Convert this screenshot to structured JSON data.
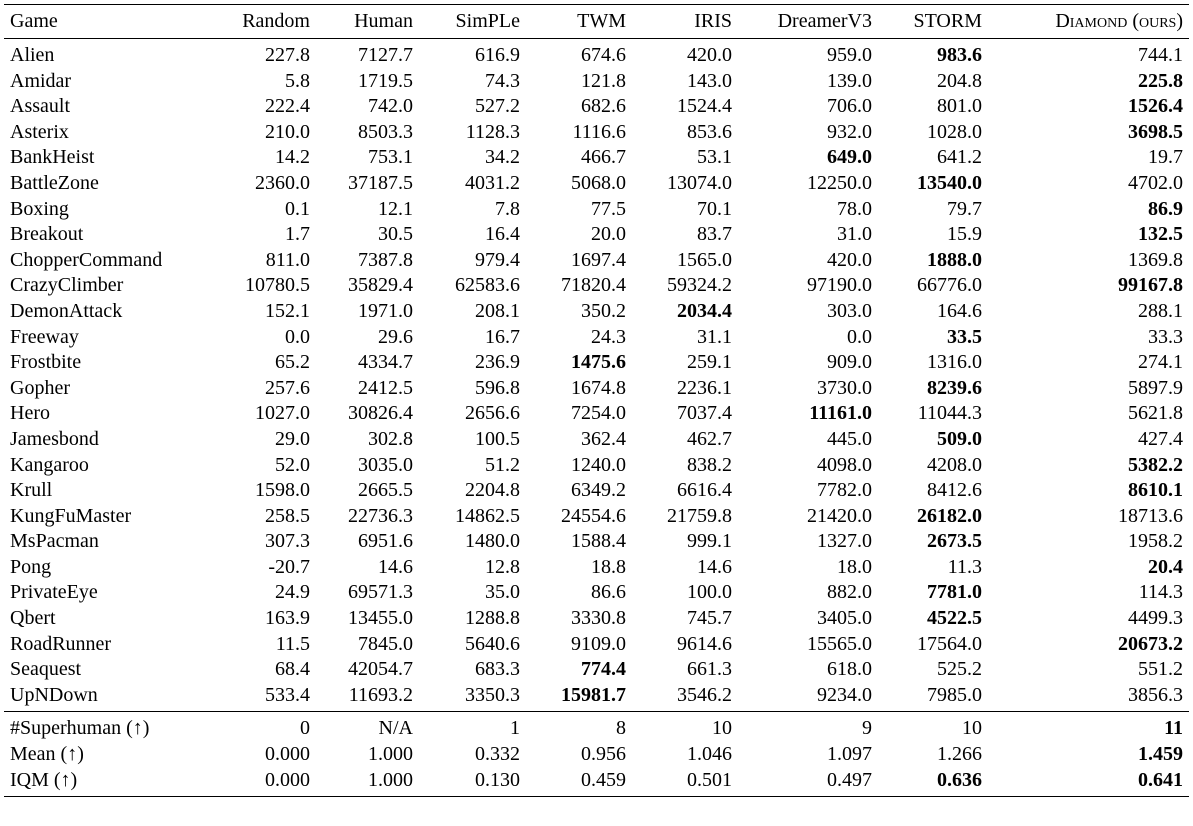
{
  "columns": [
    "Game",
    "Random",
    "Human",
    "SimPLe",
    "TWM",
    "IRIS",
    "DreamerV3",
    "STORM",
    "Diamond (ours)"
  ],
  "rows": [
    {
      "game": "Alien",
      "values": [
        "227.8",
        "7127.7",
        "616.9",
        "674.6",
        "420.0",
        "959.0",
        "983.6",
        "744.1"
      ],
      "best": [
        6
      ]
    },
    {
      "game": "Amidar",
      "values": [
        "5.8",
        "1719.5",
        "74.3",
        "121.8",
        "143.0",
        "139.0",
        "204.8",
        "225.8"
      ],
      "best": [
        7
      ]
    },
    {
      "game": "Assault",
      "values": [
        "222.4",
        "742.0",
        "527.2",
        "682.6",
        "1524.4",
        "706.0",
        "801.0",
        "1526.4"
      ],
      "best": [
        7
      ]
    },
    {
      "game": "Asterix",
      "values": [
        "210.0",
        "8503.3",
        "1128.3",
        "1116.6",
        "853.6",
        "932.0",
        "1028.0",
        "3698.5"
      ],
      "best": [
        7
      ]
    },
    {
      "game": "BankHeist",
      "values": [
        "14.2",
        "753.1",
        "34.2",
        "466.7",
        "53.1",
        "649.0",
        "641.2",
        "19.7"
      ],
      "best": [
        5
      ]
    },
    {
      "game": "BattleZone",
      "values": [
        "2360.0",
        "37187.5",
        "4031.2",
        "5068.0",
        "13074.0",
        "12250.0",
        "13540.0",
        "4702.0"
      ],
      "best": [
        6
      ]
    },
    {
      "game": "Boxing",
      "values": [
        "0.1",
        "12.1",
        "7.8",
        "77.5",
        "70.1",
        "78.0",
        "79.7",
        "86.9"
      ],
      "best": [
        7
      ]
    },
    {
      "game": "Breakout",
      "values": [
        "1.7",
        "30.5",
        "16.4",
        "20.0",
        "83.7",
        "31.0",
        "15.9",
        "132.5"
      ],
      "best": [
        7
      ]
    },
    {
      "game": "ChopperCommand",
      "values": [
        "811.0",
        "7387.8",
        "979.4",
        "1697.4",
        "1565.0",
        "420.0",
        "1888.0",
        "1369.8"
      ],
      "best": [
        6
      ]
    },
    {
      "game": "CrazyClimber",
      "values": [
        "10780.5",
        "35829.4",
        "62583.6",
        "71820.4",
        "59324.2",
        "97190.0",
        "66776.0",
        "99167.8"
      ],
      "best": [
        7
      ]
    },
    {
      "game": "DemonAttack",
      "values": [
        "152.1",
        "1971.0",
        "208.1",
        "350.2",
        "2034.4",
        "303.0",
        "164.6",
        "288.1"
      ],
      "best": [
        4
      ]
    },
    {
      "game": "Freeway",
      "values": [
        "0.0",
        "29.6",
        "16.7",
        "24.3",
        "31.1",
        "0.0",
        "33.5",
        "33.3"
      ],
      "best": [
        6
      ]
    },
    {
      "game": "Frostbite",
      "values": [
        "65.2",
        "4334.7",
        "236.9",
        "1475.6",
        "259.1",
        "909.0",
        "1316.0",
        "274.1"
      ],
      "best": [
        3
      ]
    },
    {
      "game": "Gopher",
      "values": [
        "257.6",
        "2412.5",
        "596.8",
        "1674.8",
        "2236.1",
        "3730.0",
        "8239.6",
        "5897.9"
      ],
      "best": [
        6
      ]
    },
    {
      "game": "Hero",
      "values": [
        "1027.0",
        "30826.4",
        "2656.6",
        "7254.0",
        "7037.4",
        "11161.0",
        "11044.3",
        "5621.8"
      ],
      "best": [
        5
      ]
    },
    {
      "game": "Jamesbond",
      "values": [
        "29.0",
        "302.8",
        "100.5",
        "362.4",
        "462.7",
        "445.0",
        "509.0",
        "427.4"
      ],
      "best": [
        6
      ]
    },
    {
      "game": "Kangaroo",
      "values": [
        "52.0",
        "3035.0",
        "51.2",
        "1240.0",
        "838.2",
        "4098.0",
        "4208.0",
        "5382.2"
      ],
      "best": [
        7
      ]
    },
    {
      "game": "Krull",
      "values": [
        "1598.0",
        "2665.5",
        "2204.8",
        "6349.2",
        "6616.4",
        "7782.0",
        "8412.6",
        "8610.1"
      ],
      "best": [
        7
      ]
    },
    {
      "game": "KungFuMaster",
      "values": [
        "258.5",
        "22736.3",
        "14862.5",
        "24554.6",
        "21759.8",
        "21420.0",
        "26182.0",
        "18713.6"
      ],
      "best": [
        6
      ]
    },
    {
      "game": "MsPacman",
      "values": [
        "307.3",
        "6951.6",
        "1480.0",
        "1588.4",
        "999.1",
        "1327.0",
        "2673.5",
        "1958.2"
      ],
      "best": [
        6
      ]
    },
    {
      "game": "Pong",
      "values": [
        "-20.7",
        "14.6",
        "12.8",
        "18.8",
        "14.6",
        "18.0",
        "11.3",
        "20.4"
      ],
      "best": [
        7
      ]
    },
    {
      "game": "PrivateEye",
      "values": [
        "24.9",
        "69571.3",
        "35.0",
        "86.6",
        "100.0",
        "882.0",
        "7781.0",
        "114.3"
      ],
      "best": [
        6
      ]
    },
    {
      "game": "Qbert",
      "values": [
        "163.9",
        "13455.0",
        "1288.8",
        "3330.8",
        "745.7",
        "3405.0",
        "4522.5",
        "4499.3"
      ],
      "best": [
        6
      ]
    },
    {
      "game": "RoadRunner",
      "values": [
        "11.5",
        "7845.0",
        "5640.6",
        "9109.0",
        "9614.6",
        "15565.0",
        "17564.0",
        "20673.2"
      ],
      "best": [
        7
      ]
    },
    {
      "game": "Seaquest",
      "values": [
        "68.4",
        "42054.7",
        "683.3",
        "774.4",
        "661.3",
        "618.0",
        "525.2",
        "551.2"
      ],
      "best": [
        3
      ]
    },
    {
      "game": "UpNDown",
      "values": [
        "533.4",
        "11693.2",
        "3350.3",
        "15981.7",
        "3546.2",
        "9234.0",
        "7985.0",
        "3856.3"
      ],
      "best": [
        3
      ]
    }
  ],
  "summary": [
    {
      "label": "#Superhuman (↑)",
      "values": [
        "0",
        "N/A",
        "1",
        "8",
        "10",
        "9",
        "10",
        "11"
      ],
      "best": [
        7
      ]
    },
    {
      "label": "Mean (↑)",
      "values": [
        "0.000",
        "1.000",
        "0.332",
        "0.956",
        "1.046",
        "1.097",
        "1.266",
        "1.459"
      ],
      "best": [
        7
      ]
    },
    {
      "label": "IQM (↑)",
      "values": [
        "0.000",
        "1.000",
        "0.130",
        "0.459",
        "0.501",
        "0.497",
        "0.636",
        "0.641"
      ],
      "best": [
        6,
        7
      ]
    }
  ]
}
